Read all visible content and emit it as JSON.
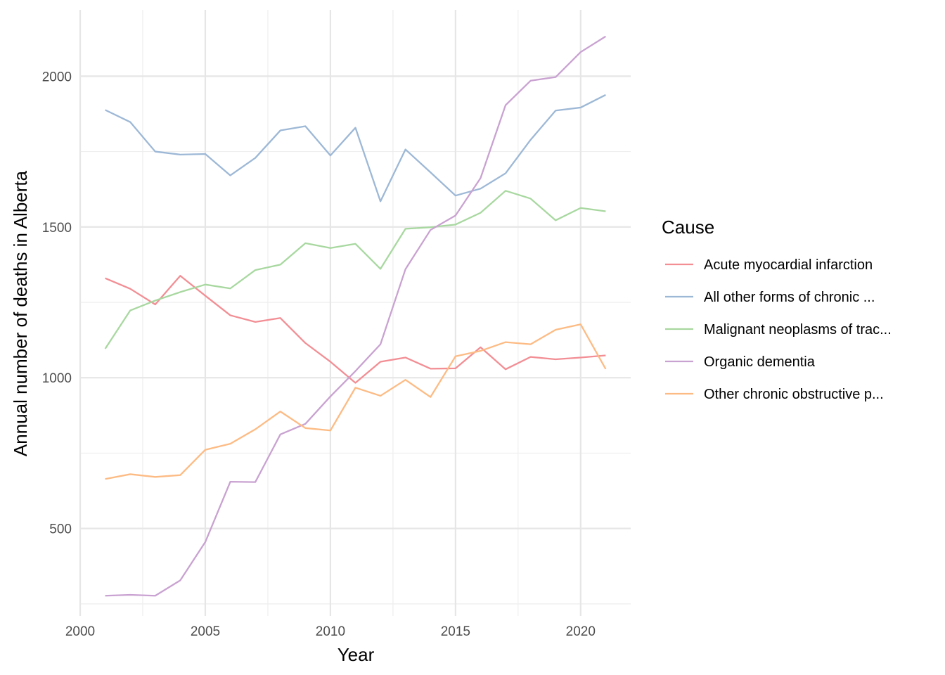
{
  "chart_data": {
    "type": "line",
    "xlabel": "Year",
    "ylabel": "Annual number of deaths in Alberta",
    "xlim": [
      2000,
      2022
    ],
    "ylim": [
      210,
      2220
    ],
    "x_ticks": [
      2000,
      2005,
      2010,
      2015,
      2020
    ],
    "x_minor": [
      2002.5,
      2007.5,
      2012.5,
      2017.5
    ],
    "y_ticks": [
      500,
      1000,
      1500,
      2000
    ],
    "y_minor": [
      250,
      750,
      1250,
      1750
    ],
    "grid": true,
    "legend": {
      "title": "Cause",
      "position": "right"
    },
    "x": [
      2001,
      2002,
      2003,
      2004,
      2005,
      2006,
      2007,
      2008,
      2009,
      2010,
      2011,
      2012,
      2013,
      2014,
      2015,
      2016,
      2017,
      2018,
      2019,
      2020,
      2021
    ],
    "series": [
      {
        "name": "Acute myocardial infarction",
        "color": "#F28E94",
        "values": [
          1330,
          1295,
          1243,
          1338,
          1272,
          1207,
          1185,
          1198,
          1115,
          1053,
          983,
          1053,
          1067,
          1030,
          1031,
          1101,
          1028,
          1069,
          1061,
          1067,
          1074
        ]
      },
      {
        "name": "All other forms of chronic ...",
        "color": "#9DB8D6",
        "values": [
          1888,
          1848,
          1750,
          1740,
          1742,
          1671,
          1729,
          1820,
          1834,
          1737,
          1829,
          1585,
          1757,
          1681,
          1604,
          1627,
          1678,
          1789,
          1886,
          1896,
          1938
        ]
      },
      {
        "name": "Malignant neoplasms of trac...",
        "color": "#A8D8A0",
        "values": [
          1096,
          1223,
          1256,
          1284,
          1309,
          1296,
          1357,
          1375,
          1446,
          1430,
          1444,
          1361,
          1494,
          1499,
          1508,
          1547,
          1620,
          1594,
          1522,
          1563,
          1552
        ]
      },
      {
        "name": "Organic dementia",
        "color": "#C9A2D1",
        "values": [
          277,
          280,
          277,
          328,
          455,
          655,
          654,
          812,
          847,
          938,
          1022,
          1111,
          1360,
          1490,
          1538,
          1662,
          1904,
          1985,
          1997,
          2080,
          2132
        ]
      },
      {
        "name": "Other chronic obstructive p...",
        "color": "#FDBB84",
        "values": [
          664,
          680,
          671,
          677,
          761,
          781,
          829,
          888,
          833,
          825,
          967,
          940,
          993,
          936,
          1071,
          1089,
          1118,
          1111,
          1159,
          1177,
          1029
        ]
      }
    ]
  }
}
